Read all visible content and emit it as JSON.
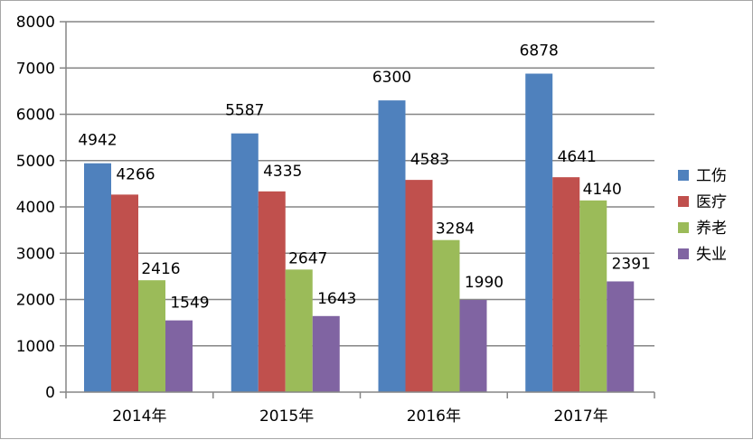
{
  "chart_data": {
    "type": "bar",
    "categories": [
      "2014年",
      "2015年",
      "2016年",
      "2017年"
    ],
    "series": [
      {
        "name": "工伤",
        "color": "#4f81bd",
        "values": [
          4942,
          5587,
          6300,
          6878
        ]
      },
      {
        "name": "医疗",
        "color": "#c0504d",
        "values": [
          4266,
          4335,
          4583,
          4641
        ]
      },
      {
        "name": "养老",
        "color": "#9bbb59",
        "values": [
          2416,
          2647,
          3284,
          4140
        ]
      },
      {
        "name": "失业",
        "color": "#8064a2",
        "values": [
          1549,
          1643,
          1990,
          2391
        ]
      }
    ],
    "ylim": [
      0,
      8000
    ],
    "yticks": [
      0,
      1000,
      2000,
      3000,
      4000,
      5000,
      6000,
      7000,
      8000
    ],
    "grid": true,
    "legend_position": "right",
    "data_labels": true
  }
}
